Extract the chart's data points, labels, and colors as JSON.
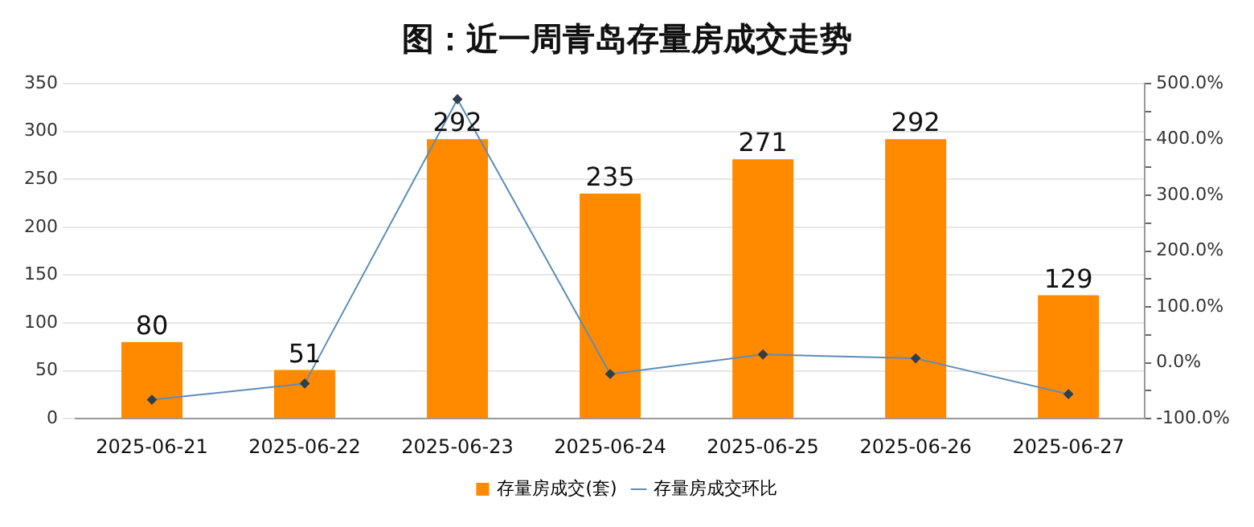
{
  "chart_data": {
    "type": "bar",
    "title": "图：近一周青岛存量房成交走势",
    "categories": [
      "2025-06-21",
      "2025-06-22",
      "2025-06-23",
      "2025-06-24",
      "2025-06-25",
      "2025-06-26",
      "2025-06-27"
    ],
    "series": [
      {
        "name": "存量房成交(套)",
        "color": "#ff8a00",
        "values": [
          80,
          51,
          292,
          235,
          271,
          292,
          129
        ],
        "value_labels": [
          "80",
          "51",
          "292",
          "235",
          "271",
          "292",
          "129"
        ]
      },
      {
        "name": "存量房成交环比",
        "type": "line",
        "axis": "y2",
        "color": "#5b8db8",
        "values": [
          -66,
          -37,
          472,
          -20,
          15,
          8,
          -56
        ]
      }
    ],
    "ylim": [
      0,
      350
    ],
    "yticks": [
      0,
      50,
      100,
      150,
      200,
      250,
      300,
      350
    ],
    "y2lim": [
      -100,
      500
    ],
    "y2ticks": [
      {
        "value": -100,
        "label": "-100.0%"
      },
      {
        "value": -50,
        "label": null
      },
      {
        "value": 0,
        "label": "0.0%"
      },
      {
        "value": 50,
        "label": null
      },
      {
        "value": 100,
        "label": "100.0%"
      },
      {
        "value": 150,
        "label": null
      },
      {
        "value": 200,
        "label": "200.0%"
      },
      {
        "value": 250,
        "label": null
      },
      {
        "value": 300,
        "label": "300.0%"
      },
      {
        "value": 350,
        "label": null
      },
      {
        "value": 400,
        "label": "400.0%"
      },
      {
        "value": 450,
        "label": null
      },
      {
        "value": 500,
        "label": "500.0%"
      }
    ],
    "grid": "y",
    "legend": "bottom",
    "marker": "diamond",
    "line_style": "solid"
  }
}
